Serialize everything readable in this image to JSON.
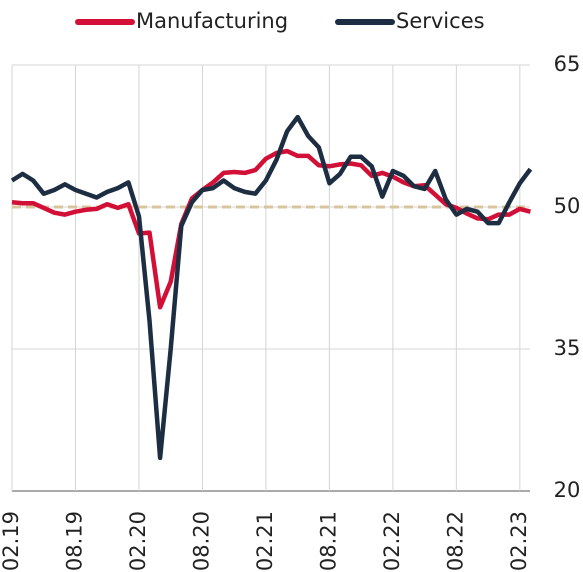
{
  "chart_data": {
    "type": "line",
    "categories": [
      "02.19",
      null,
      null,
      null,
      null,
      null,
      "08.19",
      null,
      null,
      null,
      null,
      null,
      "02.20",
      null,
      null,
      null,
      null,
      null,
      "08.20",
      null,
      null,
      null,
      null,
      null,
      "02.21",
      null,
      null,
      null,
      null,
      null,
      "08.21",
      null,
      null,
      null,
      null,
      null,
      "02.22",
      null,
      null,
      null,
      null,
      null,
      "08.22",
      null,
      null,
      null,
      null,
      null,
      "02.23",
      null
    ],
    "series": [
      {
        "name": "Manufacturing",
        "color": "#d20f36",
        "values": [
          50.5,
          50.4,
          50.4,
          49.9,
          49.4,
          49.2,
          49.5,
          49.7,
          49.8,
          50.3,
          49.9,
          50.3,
          47.2,
          47.3,
          39.4,
          42.1,
          48.2,
          50.9,
          51.8,
          52.6,
          53.6,
          53.7,
          53.6,
          53.9,
          55.1,
          55.7,
          55.9,
          55.4,
          55.4,
          54.4,
          54.3,
          54.5,
          54.6,
          54.4,
          53.3,
          53.6,
          53.2,
          52.6,
          52.2,
          52.3,
          51.3,
          50.3,
          49.9,
          49.3,
          48.8,
          48.7,
          49.2,
          49.2,
          49.8,
          49.5
        ]
      },
      {
        "name": "Services",
        "color": "#1d2d42",
        "values": [
          52.8,
          53.5,
          52.8,
          51.4,
          51.8,
          52.4,
          51.8,
          51.4,
          51,
          51.6,
          52,
          52.6,
          49,
          38,
          23.5,
          35,
          48,
          50.5,
          51.8,
          52,
          52.8,
          52,
          51.6,
          51.4,
          52.8,
          55,
          58,
          59.5,
          57.5,
          56.3,
          52.5,
          53.5,
          55.3,
          55.3,
          54.3,
          51.1,
          53.8,
          53.3,
          52.2,
          51.9,
          53.8,
          50.8,
          49.2,
          49.8,
          49.5,
          48.3,
          48.3,
          50.5,
          52.5,
          54
        ]
      }
    ],
    "ylim": [
      20,
      65
    ],
    "yticks": [
      20,
      35,
      50,
      65
    ],
    "grid": true,
    "reference_line": 50,
    "reference_color": "#d8c59c",
    "legend": "top"
  }
}
